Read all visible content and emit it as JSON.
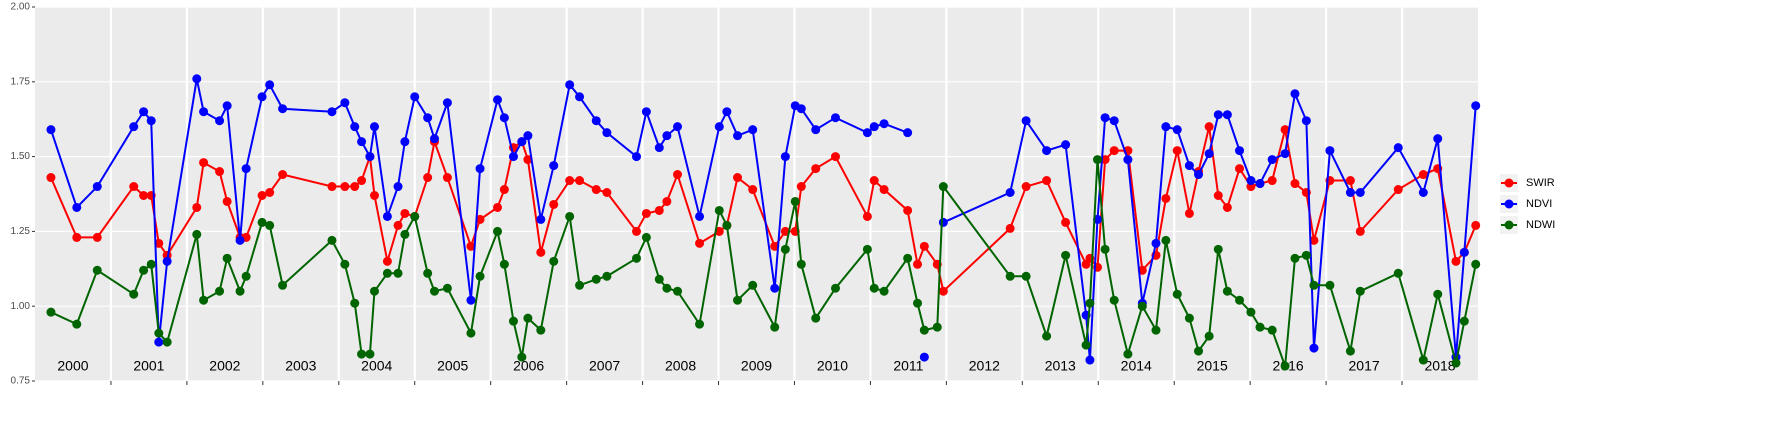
{
  "chart_data": {
    "type": "line",
    "x": [
      2000.21,
      2000.55,
      2000.82,
      2001.3,
      2001.43,
      2001.53,
      2001.63,
      2001.74,
      2002.13,
      2002.22,
      2002.43,
      2002.53,
      2002.7,
      2002.78,
      2002.99,
      2003.09,
      2003.26,
      2003.91,
      2004.08,
      2004.21,
      2004.3,
      2004.41,
      2004.47,
      2004.64,
      2004.78,
      2004.87,
      2005.0,
      2005.17,
      2005.26,
      2005.43,
      2005.74,
      2005.86,
      2006.09,
      2006.18,
      2006.3,
      2006.41,
      2006.49,
      2006.66,
      2006.83,
      2007.04,
      2007.17,
      2007.39,
      2007.53,
      2007.92,
      2008.05,
      2008.22,
      2008.32,
      2008.46,
      2008.75,
      2009.01,
      2009.11,
      2009.25,
      2009.45,
      2009.74,
      2009.88,
      2010.01,
      2010.09,
      2010.28,
      2010.54,
      2010.96,
      2011.05,
      2011.18,
      2011.49,
      2011.62,
      2011.71,
      2011.88,
      2011.96,
      2012.84,
      2013.05,
      2013.32,
      2013.57,
      2013.84,
      2013.89,
      2013.99,
      2014.09,
      2014.21,
      2014.39,
      2014.58,
      2014.76,
      2014.89,
      2015.04,
      2015.2,
      2015.32,
      2015.46,
      2015.58,
      2015.7,
      2015.86,
      2016.01,
      2016.13,
      2016.29,
      2016.46,
      2016.59,
      2016.74,
      2016.84,
      2017.05,
      2017.32,
      2017.45,
      2017.95,
      2018.28,
      2018.47,
      2018.71,
      2018.82,
      2018.97
    ],
    "series": [
      {
        "name": "SWIR",
        "color": "#ff0000",
        "values": [
          1.43,
          1.23,
          1.23,
          1.4,
          1.37,
          1.37,
          1.21,
          1.17,
          1.33,
          1.48,
          1.45,
          1.35,
          1.23,
          1.23,
          1.37,
          1.38,
          1.44,
          1.4,
          1.4,
          1.4,
          1.42,
          1.5,
          1.37,
          1.15,
          1.27,
          1.31,
          1.3,
          1.43,
          1.55,
          1.43,
          1.2,
          1.29,
          1.33,
          1.39,
          1.53,
          1.55,
          1.49,
          1.18,
          1.34,
          1.42,
          1.42,
          1.39,
          1.38,
          1.25,
          1.31,
          1.32,
          1.35,
          1.44,
          1.21,
          1.25,
          1.27,
          1.43,
          1.39,
          1.2,
          1.25,
          1.25,
          1.4,
          1.46,
          1.5,
          1.3,
          1.42,
          1.39,
          1.32,
          1.14,
          1.2,
          1.14,
          1.05,
          1.26,
          1.4,
          1.42,
          1.28,
          1.14,
          1.16,
          1.13,
          1.49,
          1.52,
          1.52,
          1.12,
          1.17,
          1.36,
          1.52,
          1.31,
          1.45,
          1.6,
          1.37,
          1.33,
          1.46,
          1.4,
          1.41,
          1.42,
          1.59,
          1.41,
          1.38,
          1.22,
          1.42,
          1.42,
          1.25,
          1.39,
          1.44,
          1.46,
          1.15,
          1.18,
          1.27
        ]
      },
      {
        "name": "NDVI",
        "color": "#0000ff",
        "values": [
          1.59,
          1.33,
          1.4,
          1.6,
          1.65,
          1.62,
          0.88,
          1.15,
          1.76,
          1.65,
          1.62,
          1.67,
          1.22,
          1.46,
          1.7,
          1.74,
          1.66,
          1.65,
          1.68,
          1.6,
          1.55,
          1.5,
          1.6,
          1.3,
          1.4,
          1.55,
          1.7,
          1.63,
          1.56,
          1.68,
          1.02,
          1.46,
          1.69,
          1.63,
          1.5,
          1.55,
          1.57,
          1.29,
          1.47,
          1.74,
          1.7,
          1.62,
          1.58,
          1.5,
          1.65,
          1.53,
          1.57,
          1.6,
          1.3,
          1.6,
          1.65,
          1.57,
          1.59,
          1.06,
          1.5,
          1.67,
          1.66,
          1.59,
          1.63,
          1.58,
          1.6,
          1.61,
          1.58,
          null,
          0.83,
          null,
          1.28,
          1.38,
          1.62,
          1.52,
          1.54,
          0.97,
          0.82,
          1.29,
          1.63,
          1.62,
          1.49,
          1.01,
          1.21,
          1.6,
          1.59,
          1.47,
          1.44,
          1.51,
          1.64,
          1.64,
          1.52,
          1.42,
          1.41,
          1.49,
          1.51,
          1.71,
          1.62,
          0.86,
          1.52,
          1.38,
          1.38,
          1.53,
          1.38,
          1.56,
          0.83,
          1.18,
          1.67
        ]
      },
      {
        "name": "NDWI",
        "color": "#006400",
        "values": [
          0.98,
          0.94,
          1.12,
          1.04,
          1.12,
          1.14,
          0.91,
          0.88,
          1.24,
          1.02,
          1.05,
          1.16,
          1.05,
          1.1,
          1.28,
          1.27,
          1.07,
          1.22,
          1.14,
          1.01,
          0.84,
          0.84,
          1.05,
          1.11,
          1.11,
          1.24,
          1.3,
          1.11,
          1.05,
          1.06,
          0.91,
          1.1,
          1.25,
          1.14,
          0.95,
          0.83,
          0.96,
          0.92,
          1.15,
          1.3,
          1.07,
          1.09,
          1.1,
          1.16,
          1.23,
          1.09,
          1.06,
          1.05,
          0.94,
          1.32,
          1.27,
          1.02,
          1.07,
          0.93,
          1.19,
          1.35,
          1.14,
          0.96,
          1.06,
          1.19,
          1.06,
          1.05,
          1.16,
          1.01,
          0.92,
          0.93,
          1.4,
          1.1,
          1.1,
          0.9,
          1.17,
          0.87,
          1.01,
          1.49,
          1.19,
          1.02,
          0.84,
          1.0,
          0.92,
          1.22,
          1.04,
          0.96,
          0.85,
          0.9,
          1.19,
          1.05,
          1.02,
          0.98,
          0.93,
          0.92,
          0.8,
          1.16,
          1.17,
          1.07,
          1.07,
          0.85,
          1.05,
          1.11,
          0.82,
          1.04,
          0.81,
          0.95,
          1.14
        ]
      }
    ],
    "xlim": [
      2000,
      2019
    ],
    "xgrid": [
      2001,
      2002,
      2003,
      2004,
      2005,
      2006,
      2007,
      2008,
      2009,
      2010,
      2011,
      2012,
      2013,
      2014,
      2015,
      2016,
      2017,
      2018
    ],
    "xticks": [
      {
        "value": 2000.5,
        "label": "2000"
      },
      {
        "value": 2001.5,
        "label": "2001"
      },
      {
        "value": 2002.5,
        "label": "2002"
      },
      {
        "value": 2003.5,
        "label": "2003"
      },
      {
        "value": 2004.5,
        "label": "2004"
      },
      {
        "value": 2005.5,
        "label": "2005"
      },
      {
        "value": 2006.5,
        "label": "2006"
      },
      {
        "value": 2007.5,
        "label": "2007"
      },
      {
        "value": 2008.5,
        "label": "2008"
      },
      {
        "value": 2009.5,
        "label": "2009"
      },
      {
        "value": 2010.5,
        "label": "2010"
      },
      {
        "value": 2011.5,
        "label": "2011"
      },
      {
        "value": 2012.5,
        "label": "2012"
      },
      {
        "value": 2013.5,
        "label": "2013"
      },
      {
        "value": 2014.5,
        "label": "2014"
      },
      {
        "value": 2015.5,
        "label": "2015"
      },
      {
        "value": 2016.5,
        "label": "2016"
      },
      {
        "value": 2017.5,
        "label": "2017"
      },
      {
        "value": 2018.5,
        "label": "2018"
      }
    ],
    "ylim": [
      0.75,
      2.0
    ],
    "yticks": [
      {
        "value": 0.75,
        "label": "0.75"
      },
      {
        "value": 1.0,
        "label": "1.00"
      },
      {
        "value": 1.25,
        "label": "1.25"
      },
      {
        "value": 1.5,
        "label": "1.50"
      },
      {
        "value": 1.75,
        "label": "1.75"
      },
      {
        "value": 2.0,
        "label": "2.00"
      }
    ],
    "grid": true,
    "legend": "right"
  }
}
